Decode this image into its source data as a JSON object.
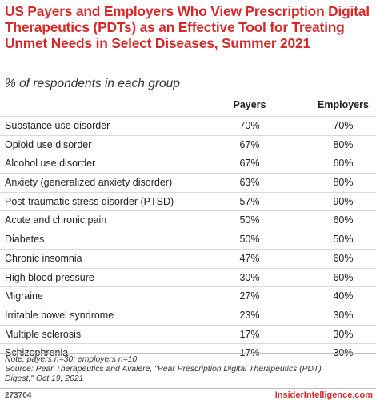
{
  "chart_data": {
    "type": "table",
    "title": "US Payers and Employers Who View Prescription Digital Therapeutics (PDTs) as an Effective Tool for Treating Unmet Needs in Select Diseases, Summer 2021",
    "subtitle": "% of respondents in each group",
    "columns": [
      "Payers",
      "Employers"
    ],
    "rows": [
      {
        "label": "Substance use disorder",
        "payers": "70%",
        "employers": "70%"
      },
      {
        "label": "Opioid use disorder",
        "payers": "67%",
        "employers": "80%"
      },
      {
        "label": "Alcohol use disorder",
        "payers": "67%",
        "employers": "60%"
      },
      {
        "label": "Anxiety (generalized anxiety disorder)",
        "payers": "63%",
        "employers": "80%"
      },
      {
        "label": "Post-traumatic stress disorder (PTSD)",
        "payers": "57%",
        "employers": "90%"
      },
      {
        "label": "Acute and chronic pain",
        "payers": "50%",
        "employers": "60%"
      },
      {
        "label": "Diabetes",
        "payers": "50%",
        "employers": "50%"
      },
      {
        "label": "Chronic insomnia",
        "payers": "47%",
        "employers": "60%"
      },
      {
        "label": "High blood pressure",
        "payers": "30%",
        "employers": "60%"
      },
      {
        "label": "Migraine",
        "payers": "27%",
        "employers": "40%"
      },
      {
        "label": "Irritable bowel syndrome",
        "payers": "23%",
        "employers": "30%"
      },
      {
        "label": "Multiple sclerosis",
        "payers": "17%",
        "employers": "30%"
      },
      {
        "label": "Schizophrenia",
        "payers": "17%",
        "employers": "30%"
      }
    ]
  },
  "note": {
    "line1": "Note: payers n=30; employers n=10",
    "line2": "Source: Pear Therapeutics and Avalere, \"Pear Prescription Digital Therapeutics (PDT)",
    "line3": "Digest,\" Oct 19, 2021"
  },
  "footer": {
    "chart_id": "273704",
    "brand": "InsiderIntelligence.com"
  },
  "colors": {
    "title": "#d62a2a",
    "brand": "#d62a2a",
    "rule": "#d9d9d9"
  }
}
